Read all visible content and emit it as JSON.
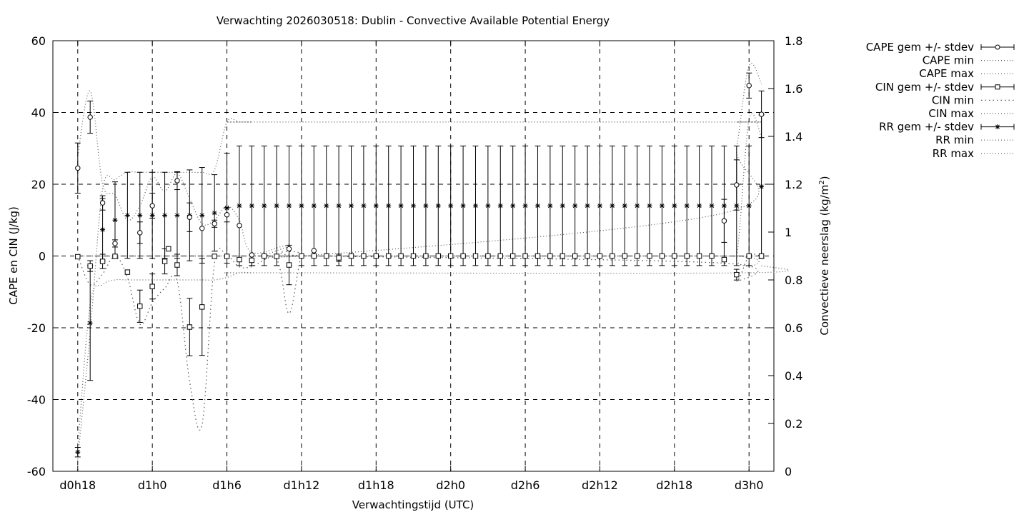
{
  "chart_data": {
    "type": "line",
    "title": "Verwachting 2026030518: Dublin - Convective Available Potential Energy",
    "xlabel": "Verwachtingstijd (UTC)",
    "ylabel": "CAPE en CIN (J/kg)",
    "y2label_main": "Convectieve neerslag (kg/m",
    "y2label_sup": "2",
    "y2label_end": ")",
    "x_tick_labels": [
      "d0h18",
      "d1h0",
      "d1h6",
      "d1h12",
      "d1h18",
      "d2h0",
      "d2h6",
      "d2h12",
      "d2h18",
      "d3h0"
    ],
    "x_tick_hours": [
      18,
      24,
      30,
      36,
      42,
      48,
      54,
      60,
      66,
      72
    ],
    "xlim_hours": [
      16,
      74
    ],
    "ylim": [
      -60,
      60
    ],
    "yticks": [
      -60,
      -40,
      -20,
      0,
      20,
      40,
      60
    ],
    "y2lim": [
      0,
      1.8
    ],
    "y2ticks": [
      "0",
      "0.2",
      "0.4",
      "0.6",
      "0.8",
      "1",
      "1.2",
      "1.4",
      "1.6",
      "1.8"
    ],
    "grid": true,
    "legend_position": "outside-right",
    "legend": [
      {
        "label": "CAPE gem +/- stdev",
        "style": "errorbar",
        "marker": "circle"
      },
      {
        "label": "CAPE min",
        "style": "dotted"
      },
      {
        "label": "CAPE max",
        "style": "dotted"
      },
      {
        "label": "CIN gem +/- stdev",
        "style": "errorbar",
        "marker": "square"
      },
      {
        "label": "CIN min",
        "style": "dotted-sparse"
      },
      {
        "label": "CIN max",
        "style": "dotted"
      },
      {
        "label": "RR gem +/- stdev",
        "style": "errorbar",
        "marker": "star"
      },
      {
        "label": "RR min",
        "style": "dotted"
      },
      {
        "label": "RR max",
        "style": "dotted"
      }
    ],
    "series": [
      {
        "name": "CAPE gem +/- stdev",
        "axis": "y1",
        "x": [
          18,
          19,
          20,
          21,
          23,
          24,
          26,
          27,
          28,
          29,
          30,
          31,
          32,
          35,
          37,
          70,
          71,
          72,
          73
        ],
        "values": [
          24.5,
          38.7,
          14.8,
          3.5,
          6.5,
          14.0,
          21.0,
          10.8,
          7.7,
          9.0,
          11.5,
          8.5,
          0.3,
          2.0,
          1.5,
          9.8,
          19.8,
          47.5,
          39.5
        ],
        "stdev": [
          7.0,
          4.5,
          2.0,
          1.0,
          3.0,
          3.5,
          2.5,
          4.0,
          0.0,
          1.0,
          2.0,
          0.0,
          0.0,
          0.0,
          0.0,
          6.0,
          7.0,
          3.5,
          6.5
        ]
      },
      {
        "name": "CIN gem +/- stdev",
        "axis": "y1",
        "x": [
          18,
          19,
          20,
          21,
          22,
          23,
          24,
          25,
          25.3,
          26,
          27,
          28,
          29,
          30,
          31,
          32,
          33,
          34,
          35,
          36,
          37,
          38,
          39,
          40,
          41,
          42,
          43,
          44,
          45,
          46,
          47,
          48,
          49,
          50,
          51,
          52,
          53,
          54,
          55,
          56,
          57,
          58,
          59,
          60,
          61,
          62,
          63,
          64,
          65,
          66,
          67,
          68,
          69,
          70,
          71,
          72,
          73
        ],
        "values": [
          -0.2,
          -2.8,
          -1.5,
          -0.1,
          -4.5,
          -14.0,
          -8.5,
          -1.5,
          2.0,
          -2.5,
          -19.8,
          -14.2,
          -0.1,
          -0.1,
          -1.0,
          -1.2,
          0.0,
          -0.1,
          -2.5,
          0.0,
          0.0,
          0.0,
          -0.5,
          0.0,
          0.0,
          0.0,
          0.0,
          0.0,
          0.0,
          0.0,
          0.0,
          0.0,
          0.0,
          0.0,
          0.0,
          0.0,
          0.0,
          0.0,
          0.0,
          0.0,
          0.0,
          0.0,
          0.0,
          0.0,
          0.0,
          0.0,
          0.0,
          0.0,
          0.0,
          0.0,
          0.0,
          0.0,
          0.0,
          -1.0,
          -5.2,
          0.0,
          0.0
        ],
        "stdev": [
          0.0,
          1.5,
          2.0,
          0.0,
          0.0,
          4.5,
          3.5,
          3.5,
          0.0,
          3.0,
          8.0,
          13.5,
          0.0,
          0.0,
          0.0,
          1.5,
          0.0,
          0.0,
          5.5,
          0.0,
          0.0,
          0.0,
          1.0,
          0.0,
          0.0,
          0.0,
          0.0,
          0.0,
          0.0,
          0.0,
          0.0,
          0.0,
          0.0,
          0.0,
          0.0,
          0.0,
          0.0,
          0.0,
          0.0,
          0.0,
          0.0,
          0.0,
          0.0,
          0.0,
          0.0,
          0.0,
          0.0,
          0.0,
          0.0,
          0.0,
          0.0,
          0.0,
          0.0,
          0.0,
          1.5,
          0.0,
          0.0
        ]
      },
      {
        "name": "RR gem +/- stdev",
        "axis": "y2",
        "x": [
          18,
          19,
          20,
          21,
          22,
          23,
          24,
          25,
          26,
          27,
          28,
          29,
          30,
          31,
          32,
          33,
          34,
          35,
          36,
          37,
          38,
          39,
          40,
          41,
          42,
          43,
          44,
          45,
          46,
          47,
          48,
          49,
          50,
          51,
          52,
          53,
          54,
          55,
          56,
          57,
          58,
          59,
          60,
          61,
          62,
          63,
          64,
          65,
          66,
          67,
          68,
          69,
          70,
          71,
          72,
          73
        ],
        "values": [
          0.08,
          0.62,
          1.01,
          1.05,
          1.07,
          1.07,
          1.07,
          1.07,
          1.07,
          1.07,
          1.07,
          1.08,
          1.1,
          1.11,
          1.11,
          1.11,
          1.11,
          1.11,
          1.11,
          1.11,
          1.11,
          1.11,
          1.11,
          1.11,
          1.11,
          1.11,
          1.11,
          1.11,
          1.11,
          1.11,
          1.11,
          1.11,
          1.11,
          1.11,
          1.11,
          1.11,
          1.11,
          1.11,
          1.11,
          1.11,
          1.11,
          1.11,
          1.11,
          1.11,
          1.11,
          1.11,
          1.11,
          1.11,
          1.11,
          1.11,
          1.11,
          1.11,
          1.11,
          1.11,
          1.11,
          1.19
        ],
        "stdev": [
          0.02,
          0.24,
          0.13,
          0.16,
          0.18,
          0.18,
          0.18,
          0.18,
          0.18,
          0.19,
          0.2,
          0.16,
          0.23,
          0.25,
          0.25,
          0.25,
          0.25,
          0.25,
          0.25,
          0.25,
          0.25,
          0.25,
          0.25,
          0.25,
          0.25,
          0.25,
          0.25,
          0.25,
          0.25,
          0.25,
          0.25,
          0.25,
          0.25,
          0.25,
          0.25,
          0.25,
          0.25,
          0.25,
          0.25,
          0.25,
          0.25,
          0.25,
          0.25,
          0.25,
          0.25,
          0.25,
          0.25,
          0.25,
          0.25,
          0.25,
          0.25,
          0.25,
          0.25,
          0.25,
          0.25,
          0.3
        ]
      },
      {
        "name": "CAPE min",
        "axis": "y1",
        "x": [
          18,
          19,
          20,
          21,
          22,
          23,
          24,
          25,
          26,
          27,
          28,
          29,
          30,
          31,
          32,
          35,
          36,
          70,
          71,
          72,
          73
        ],
        "values": [
          0,
          0,
          0,
          0,
          0,
          0,
          0,
          0,
          0,
          0,
          0,
          0,
          0,
          0,
          0,
          0,
          0,
          0,
          0,
          38,
          33
        ]
      },
      {
        "name": "CAPE max",
        "axis": "y1",
        "x": [
          18,
          19,
          20,
          21,
          22,
          23,
          24,
          25,
          26,
          27,
          28,
          29,
          30,
          31,
          32,
          35,
          36,
          70,
          71,
          72,
          73
        ],
        "values": [
          28,
          46,
          20,
          17,
          10,
          14,
          22,
          18,
          23,
          16,
          9,
          10,
          14,
          10,
          1,
          3,
          0,
          12,
          30,
          53,
          48
        ]
      },
      {
        "name": "CIN min",
        "axis": "y1",
        "x": [
          18,
          19,
          20,
          21,
          22,
          23,
          24,
          25,
          26,
          27,
          28,
          29,
          30,
          31,
          32,
          34,
          35,
          36,
          37,
          70,
          71,
          72,
          73
        ],
        "values": [
          0,
          -8,
          -5,
          0,
          -6,
          -19,
          -13,
          -9,
          -7,
          -35,
          -47,
          -2,
          0,
          -3,
          -3,
          -1,
          -16,
          0,
          0,
          -2,
          -7,
          0,
          0
        ]
      },
      {
        "name": "CIN max",
        "axis": "y1",
        "x": [
          18,
          19,
          20,
          21,
          22,
          23,
          24,
          25,
          26,
          27,
          28,
          29,
          30,
          31,
          32,
          34,
          35,
          36,
          37,
          70,
          71,
          72,
          73
        ],
        "values": [
          0,
          0,
          0,
          0,
          0,
          0,
          0,
          0,
          0,
          0,
          0,
          0,
          0,
          0,
          0,
          0,
          0,
          0,
          0,
          0,
          0,
          0,
          0
        ]
      },
      {
        "name": "RR min",
        "axis": "y2",
        "x": [
          18,
          19,
          20,
          21,
          22,
          23,
          24,
          25,
          26,
          27,
          28,
          29,
          30,
          31,
          32,
          33,
          72,
          73
        ],
        "values": [
          0.1,
          0.7,
          0.78,
          0.8,
          0.8,
          0.8,
          0.8,
          0.8,
          0.8,
          0.8,
          0.8,
          0.8,
          0.81,
          0.83,
          0.83,
          0.83,
          0.83,
          0.86
        ]
      },
      {
        "name": "RR max",
        "axis": "y2",
        "x": [
          18,
          19,
          20,
          21,
          22,
          23,
          24,
          25,
          26,
          27,
          28,
          29,
          30,
          31,
          32,
          33,
          70,
          71,
          72,
          73
        ],
        "values": [
          0.05,
          0.58,
          1.18,
          1.22,
          1.25,
          1.25,
          1.25,
          1.25,
          1.25,
          1.25,
          1.25,
          1.26,
          1.46,
          1.46,
          1.46,
          1.46,
          1.46,
          1.46,
          1.46,
          1.46
        ]
      }
    ]
  }
}
